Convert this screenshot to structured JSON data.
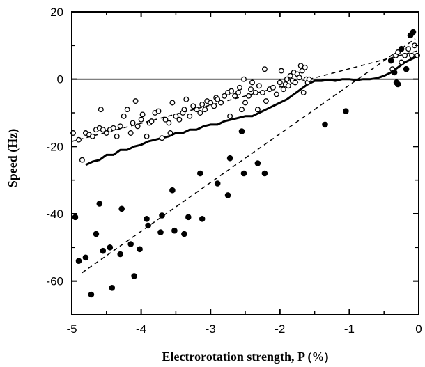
{
  "chart_data": {
    "type": "scatter",
    "xlabel": "Electrorotation strength, P (%)",
    "ylabel": "Speed (Hz)",
    "xlim": [
      -5,
      0
    ],
    "ylim": [
      -70,
      20
    ],
    "x_ticks": [
      -5,
      -4,
      -3,
      -2,
      -1,
      0
    ],
    "y_ticks": [
      20,
      0,
      -20,
      -40,
      -60
    ],
    "x_tick_labels": [
      "-5",
      "-4",
      "-3",
      "-2",
      "-1",
      "0"
    ],
    "y_tick_labels": [
      "20",
      "0",
      "-20",
      "-40",
      "-60"
    ],
    "zero_line": 0,
    "grid": false,
    "series": [
      {
        "marker": "open-circle",
        "color": "#000000",
        "points": [
          [
            -4.98,
            -16
          ],
          [
            -4.9,
            -18
          ],
          [
            -4.85,
            -24
          ],
          [
            -4.8,
            -16
          ],
          [
            -4.75,
            -16.5
          ],
          [
            -4.7,
            -17
          ],
          [
            -4.65,
            -15
          ],
          [
            -4.6,
            -14.5
          ],
          [
            -4.58,
            -9
          ],
          [
            -4.55,
            -15
          ],
          [
            -4.5,
            -16
          ],
          [
            -4.45,
            -15
          ],
          [
            -4.4,
            -14.5
          ],
          [
            -4.35,
            -17
          ],
          [
            -4.3,
            -14
          ],
          [
            -4.25,
            -11
          ],
          [
            -4.2,
            -9
          ],
          [
            -4.15,
            -16
          ],
          [
            -4.12,
            -13
          ],
          [
            -4.08,
            -6.5
          ],
          [
            -4.05,
            -14
          ],
          [
            -4.0,
            -12
          ],
          [
            -3.98,
            -10.5
          ],
          [
            -3.92,
            -17
          ],
          [
            -3.88,
            -13
          ],
          [
            -3.85,
            -12.5
          ],
          [
            -3.8,
            -10
          ],
          [
            -3.75,
            -9.5
          ],
          [
            -3.7,
            -17.5
          ],
          [
            -3.65,
            -12
          ],
          [
            -3.6,
            -13
          ],
          [
            -3.58,
            -16
          ],
          [
            -3.55,
            -7
          ],
          [
            -3.5,
            -11
          ],
          [
            -3.45,
            -12
          ],
          [
            -3.4,
            -10
          ],
          [
            -3.38,
            -9
          ],
          [
            -3.35,
            -6
          ],
          [
            -3.3,
            -11
          ],
          [
            -3.25,
            -8
          ],
          [
            -3.2,
            -9
          ],
          [
            -3.15,
            -10
          ],
          [
            -3.12,
            -7.5
          ],
          [
            -3.08,
            -9
          ],
          [
            -3.05,
            -6.5
          ],
          [
            -3.0,
            -7
          ],
          [
            -2.95,
            -8
          ],
          [
            -2.92,
            -5.5
          ],
          [
            -2.9,
            -6
          ],
          [
            -2.85,
            -7
          ],
          [
            -2.8,
            -5
          ],
          [
            -2.75,
            -4
          ],
          [
            -2.72,
            -11
          ],
          [
            -2.7,
            -3.5
          ],
          [
            -2.65,
            -5
          ],
          [
            -2.6,
            -4
          ],
          [
            -2.58,
            -2.5
          ],
          [
            -2.55,
            -9
          ],
          [
            -2.52,
            0
          ],
          [
            -2.5,
            -7
          ],
          [
            -2.45,
            -5
          ],
          [
            -2.42,
            -3
          ],
          [
            -2.4,
            -1
          ],
          [
            -2.35,
            -4
          ],
          [
            -2.32,
            -9
          ],
          [
            -2.3,
            -2
          ],
          [
            -2.25,
            -4
          ],
          [
            -2.22,
            3
          ],
          [
            -2.2,
            -6.5
          ],
          [
            -2.15,
            -3
          ],
          [
            -2.1,
            -2.5
          ],
          [
            -2.05,
            -4.5
          ],
          [
            -2.0,
            -1
          ],
          [
            -1.98,
            2.5
          ],
          [
            -1.95,
            -3
          ],
          [
            -1.92,
            -1.5
          ],
          [
            -1.9,
            0
          ],
          [
            -1.88,
            -2
          ],
          [
            -1.85,
            1
          ],
          [
            -1.82,
            -0.5
          ],
          [
            -1.8,
            2
          ],
          [
            -1.78,
            -1
          ],
          [
            -1.75,
            1.5
          ],
          [
            -1.72,
            0.5
          ],
          [
            -1.7,
            4
          ],
          [
            -1.68,
            2.5
          ],
          [
            -1.66,
            -4
          ],
          [
            -1.64,
            3.5
          ],
          [
            -1.62,
            0
          ],
          [
            -1.6,
            -1
          ],
          [
            -1.58,
            0
          ],
          [
            -0.38,
            3
          ],
          [
            -0.33,
            7
          ],
          [
            -0.3,
            8
          ],
          [
            -0.25,
            5
          ],
          [
            -0.2,
            7
          ],
          [
            -0.15,
            9
          ],
          [
            -0.1,
            7
          ],
          [
            -0.06,
            10
          ],
          [
            -0.02,
            7
          ]
        ]
      },
      {
        "marker": "filled-circle",
        "color": "#000000",
        "points": [
          [
            -4.95,
            -41
          ],
          [
            -4.9,
            -54
          ],
          [
            -4.8,
            -53
          ],
          [
            -4.72,
            -64
          ],
          [
            -4.65,
            -46
          ],
          [
            -4.6,
            -37
          ],
          [
            -4.55,
            -51
          ],
          [
            -4.45,
            -50
          ],
          [
            -4.42,
            -62
          ],
          [
            -4.3,
            -52
          ],
          [
            -4.28,
            -38.5
          ],
          [
            -4.15,
            -49
          ],
          [
            -4.1,
            -58.5
          ],
          [
            -4.02,
            -50.5
          ],
          [
            -3.92,
            -41.5
          ],
          [
            -3.9,
            -43.5
          ],
          [
            -3.72,
            -45.5
          ],
          [
            -3.7,
            -40.5
          ],
          [
            -3.55,
            -33
          ],
          [
            -3.52,
            -45
          ],
          [
            -3.38,
            -46
          ],
          [
            -3.32,
            -41
          ],
          [
            -3.15,
            -28
          ],
          [
            -3.12,
            -41.5
          ],
          [
            -2.9,
            -31
          ],
          [
            -2.75,
            -34.5
          ],
          [
            -2.72,
            -23.5
          ],
          [
            -2.55,
            -15.5
          ],
          [
            -2.52,
            -28
          ],
          [
            -2.32,
            -25
          ],
          [
            -2.22,
            -28
          ],
          [
            -1.35,
            -13.5
          ],
          [
            -1.05,
            -9.5
          ],
          [
            -0.4,
            5.5
          ],
          [
            -0.35,
            2
          ],
          [
            -0.32,
            -1
          ],
          [
            -0.3,
            -1.5
          ],
          [
            -0.25,
            9
          ],
          [
            -0.18,
            3
          ],
          [
            -0.12,
            13
          ],
          [
            -0.08,
            14
          ]
        ]
      }
    ],
    "lines": [
      {
        "style": "solid",
        "width": 3,
        "points": [
          [
            -4.8,
            -25.5
          ],
          [
            -4.7,
            -24.5
          ],
          [
            -4.6,
            -24
          ],
          [
            -4.5,
            -22.5
          ],
          [
            -4.4,
            -22.5
          ],
          [
            -4.3,
            -21
          ],
          [
            -4.2,
            -21
          ],
          [
            -4.1,
            -20
          ],
          [
            -4.0,
            -19.5
          ],
          [
            -3.9,
            -18.5
          ],
          [
            -3.8,
            -18
          ],
          [
            -3.7,
            -17.5
          ],
          [
            -3.6,
            -17
          ],
          [
            -3.5,
            -16
          ],
          [
            -3.4,
            -16
          ],
          [
            -3.3,
            -15
          ],
          [
            -3.2,
            -15
          ],
          [
            -3.1,
            -14
          ],
          [
            -3.0,
            -13.5
          ],
          [
            -2.9,
            -13.5
          ],
          [
            -2.8,
            -12.5
          ],
          [
            -2.7,
            -12
          ],
          [
            -2.6,
            -11.5
          ],
          [
            -2.5,
            -11
          ],
          [
            -2.4,
            -11
          ],
          [
            -2.3,
            -10
          ],
          [
            -2.2,
            -9
          ],
          [
            -2.1,
            -8
          ],
          [
            -2.0,
            -7
          ],
          [
            -1.9,
            -6
          ],
          [
            -1.8,
            -4.5
          ],
          [
            -1.7,
            -3
          ],
          [
            -1.6,
            -1.5
          ],
          [
            -1.5,
            -0.5
          ],
          [
            -1.4,
            -0.5
          ],
          [
            -1.3,
            -0.2
          ],
          [
            -1.2,
            -0.5
          ],
          [
            -1.1,
            0
          ],
          [
            -1.0,
            0
          ],
          [
            -0.9,
            -0.3
          ],
          [
            -0.8,
            0
          ],
          [
            -0.7,
            0
          ],
          [
            -0.6,
            0.3
          ],
          [
            -0.5,
            1
          ],
          [
            -0.4,
            2
          ],
          [
            -0.3,
            3.5
          ],
          [
            -0.2,
            5
          ],
          [
            -0.1,
            6
          ],
          [
            -0.05,
            6.5
          ],
          [
            0,
            7
          ]
        ]
      },
      {
        "style": "dashed",
        "width": 1.5,
        "points": [
          [
            -5,
            -18.5
          ],
          [
            0,
            8.5
          ]
        ]
      },
      {
        "style": "dashed",
        "width": 1.5,
        "points": [
          [
            -4.85,
            -57.5
          ],
          [
            -0.05,
            12
          ]
        ]
      }
    ]
  }
}
